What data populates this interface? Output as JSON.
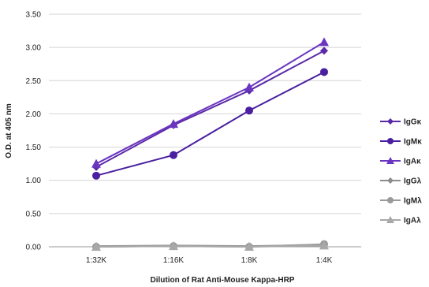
{
  "chart_data": {
    "type": "line",
    "title": "",
    "xlabel": "Dilution of Rat Anti-Mouse Kappa-HRP",
    "ylabel": "O.D. at 405 nm",
    "categories": [
      "1:32K",
      "1:16K",
      "1:8K",
      "1:4K"
    ],
    "ylim": [
      0,
      3.5
    ],
    "yticks": [
      "0.00",
      "0.50",
      "1.00",
      "1.50",
      "2.00",
      "2.50",
      "3.00",
      "3.50"
    ],
    "grid": true,
    "legend_position": "right",
    "series": [
      {
        "name": "IgGκ",
        "values": [
          1.2,
          1.83,
          2.35,
          2.95
        ],
        "color": "#5b2aa8",
        "marker": "diamond"
      },
      {
        "name": "IgMκ",
        "values": [
          1.07,
          1.38,
          2.05,
          2.63
        ],
        "color": "#4a1fa0",
        "marker": "circle"
      },
      {
        "name": "IgAκ",
        "values": [
          1.25,
          1.85,
          2.4,
          3.08
        ],
        "color": "#6a35c0",
        "marker": "triangle"
      },
      {
        "name": "IgGλ",
        "values": [
          0.01,
          0.02,
          0.01,
          0.03
        ],
        "color": "#8c8c8c",
        "marker": "diamond"
      },
      {
        "name": "IgMλ",
        "values": [
          0.0,
          0.01,
          0.0,
          0.04
        ],
        "color": "#9a9a9a",
        "marker": "circle"
      },
      {
        "name": "IgAλ",
        "values": [
          0.0,
          0.01,
          0.0,
          0.02
        ],
        "color": "#a8a8a8",
        "marker": "triangle"
      }
    ]
  }
}
